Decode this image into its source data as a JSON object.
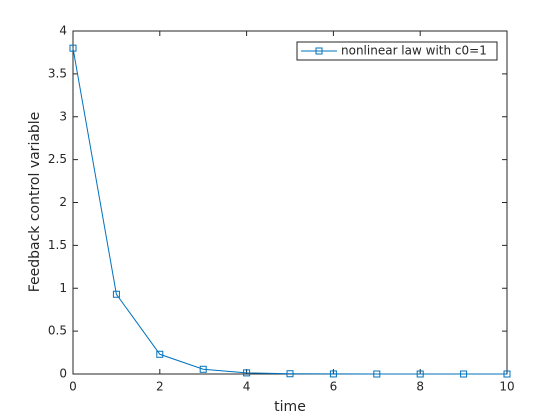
{
  "chart_data": {
    "type": "line",
    "x_label": "time",
    "y_label": "Feedback control variable",
    "x": [
      0,
      1,
      2,
      3,
      4,
      5,
      6,
      7,
      8,
      9,
      10
    ],
    "series": [
      {
        "name": "nonlinear law with c0=1",
        "color": "#0072bd",
        "values": [
          3.8,
          0.93,
          0.23,
          0.055,
          0.013,
          0.003,
          0.001,
          0,
          0,
          0,
          0
        ]
      }
    ],
    "xlim": [
      0,
      10
    ],
    "xticks": [
      0,
      2,
      4,
      6,
      8,
      10
    ],
    "ylim": [
      0,
      4
    ],
    "yticks": [
      0,
      0.5,
      1,
      1.5,
      2,
      2.5,
      3,
      3.5,
      4
    ],
    "legend": "top-right",
    "grid": false
  }
}
